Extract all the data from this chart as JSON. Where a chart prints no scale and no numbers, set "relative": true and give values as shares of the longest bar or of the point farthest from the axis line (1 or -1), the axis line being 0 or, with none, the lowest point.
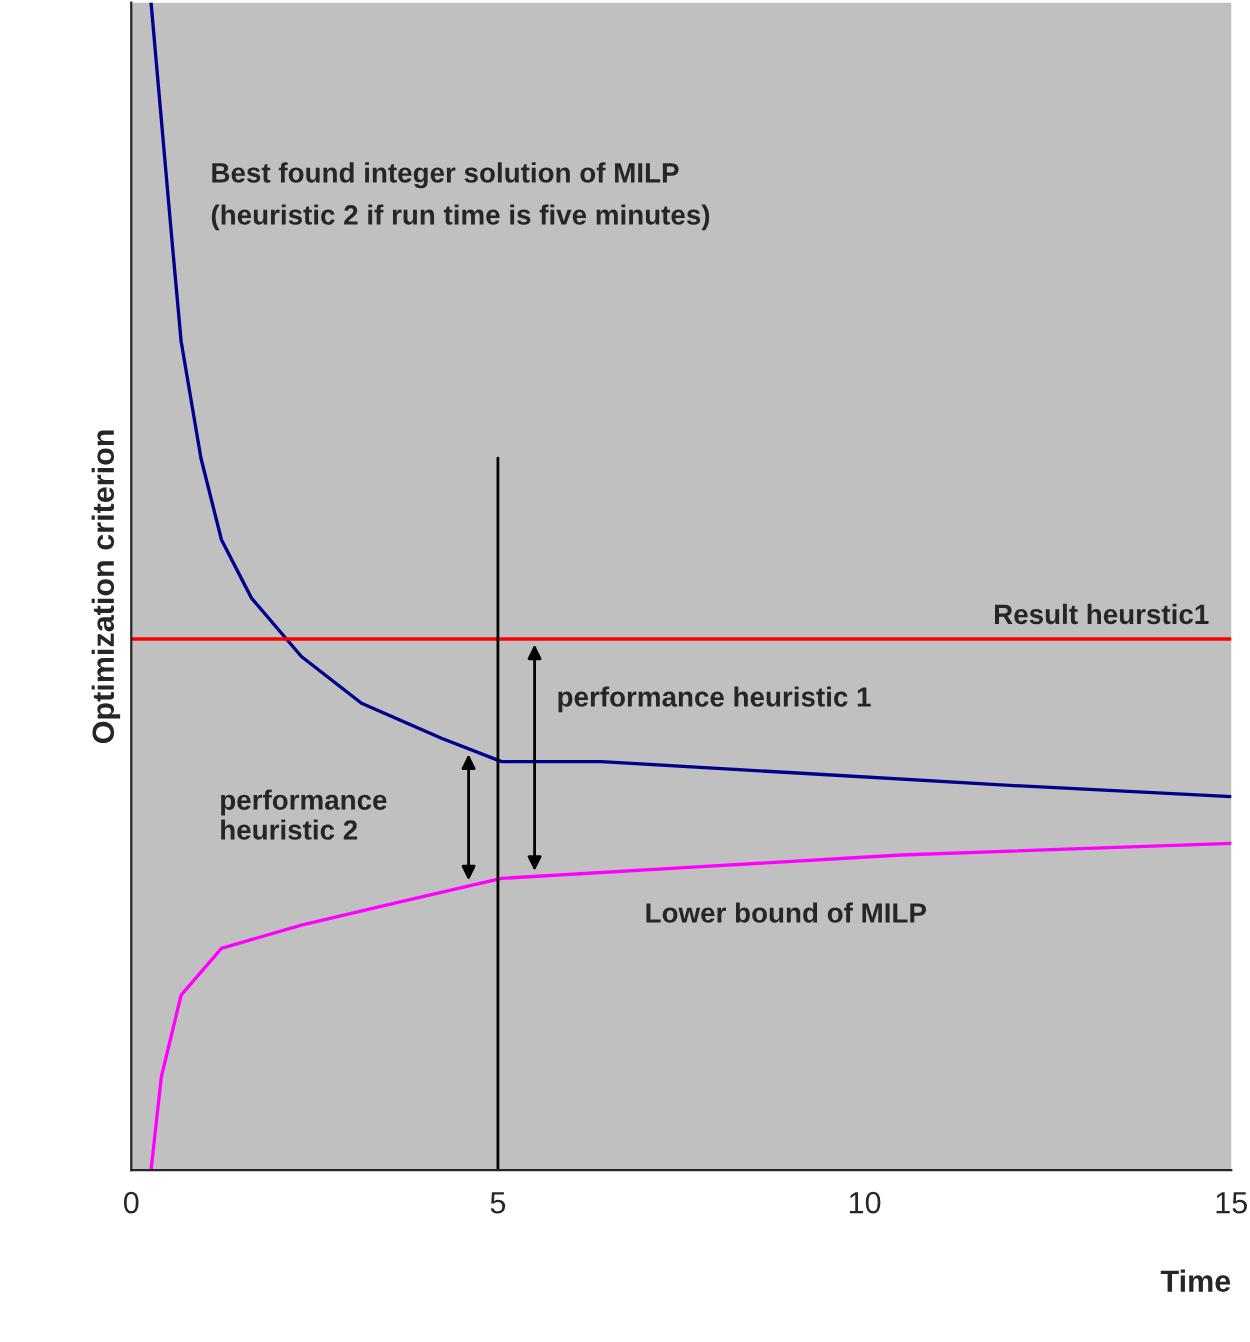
{
  "chart_data": {
    "type": "line",
    "relative": true,
    "xlabel": "Time",
    "ylabel": "Optimization criterion",
    "xlim": [
      0,
      15
    ],
    "xticks": [
      0,
      5,
      10,
      15
    ],
    "grid": false,
    "marker": "none",
    "line_style": "solid",
    "series": [
      {
        "name": "Best found integer solution of MILP\n(heuristic 2 if run time is five minutes)",
        "color": "#00008b",
        "x": [
          0.27,
          0.41,
          0.55,
          0.68,
          0.95,
          1.23,
          1.64,
          2.32,
          3.14,
          4.23,
          5.05,
          6.41,
          9.14,
          11.86,
          15
        ],
        "values": [
          1.0,
          0.9,
          0.8,
          0.71,
          0.61,
          0.54,
          0.49,
          0.44,
          0.4,
          0.37,
          0.35,
          0.35,
          0.34,
          0.33,
          0.32
        ]
      },
      {
        "name": "Lower bound of MILP",
        "color": "#ff00ff",
        "x": [
          0.27,
          0.41,
          0.68,
          1.23,
          2.32,
          3.68,
          5.05,
          7.77,
          10.5,
          15
        ],
        "values": [
          0,
          0.08,
          0.15,
          0.19,
          0.21,
          0.23,
          0.25,
          0.26,
          0.27,
          0.28
        ]
      }
    ],
    "ref_lines": [
      {
        "axis": "y",
        "value": 0.455,
        "label": "Result heurstic1",
        "color": "#ff0000"
      },
      {
        "axis": "x",
        "value": 5,
        "color": "#000000"
      }
    ],
    "annotations": [
      "performance heuristic 1",
      "performance\nheuristic 2"
    ]
  }
}
